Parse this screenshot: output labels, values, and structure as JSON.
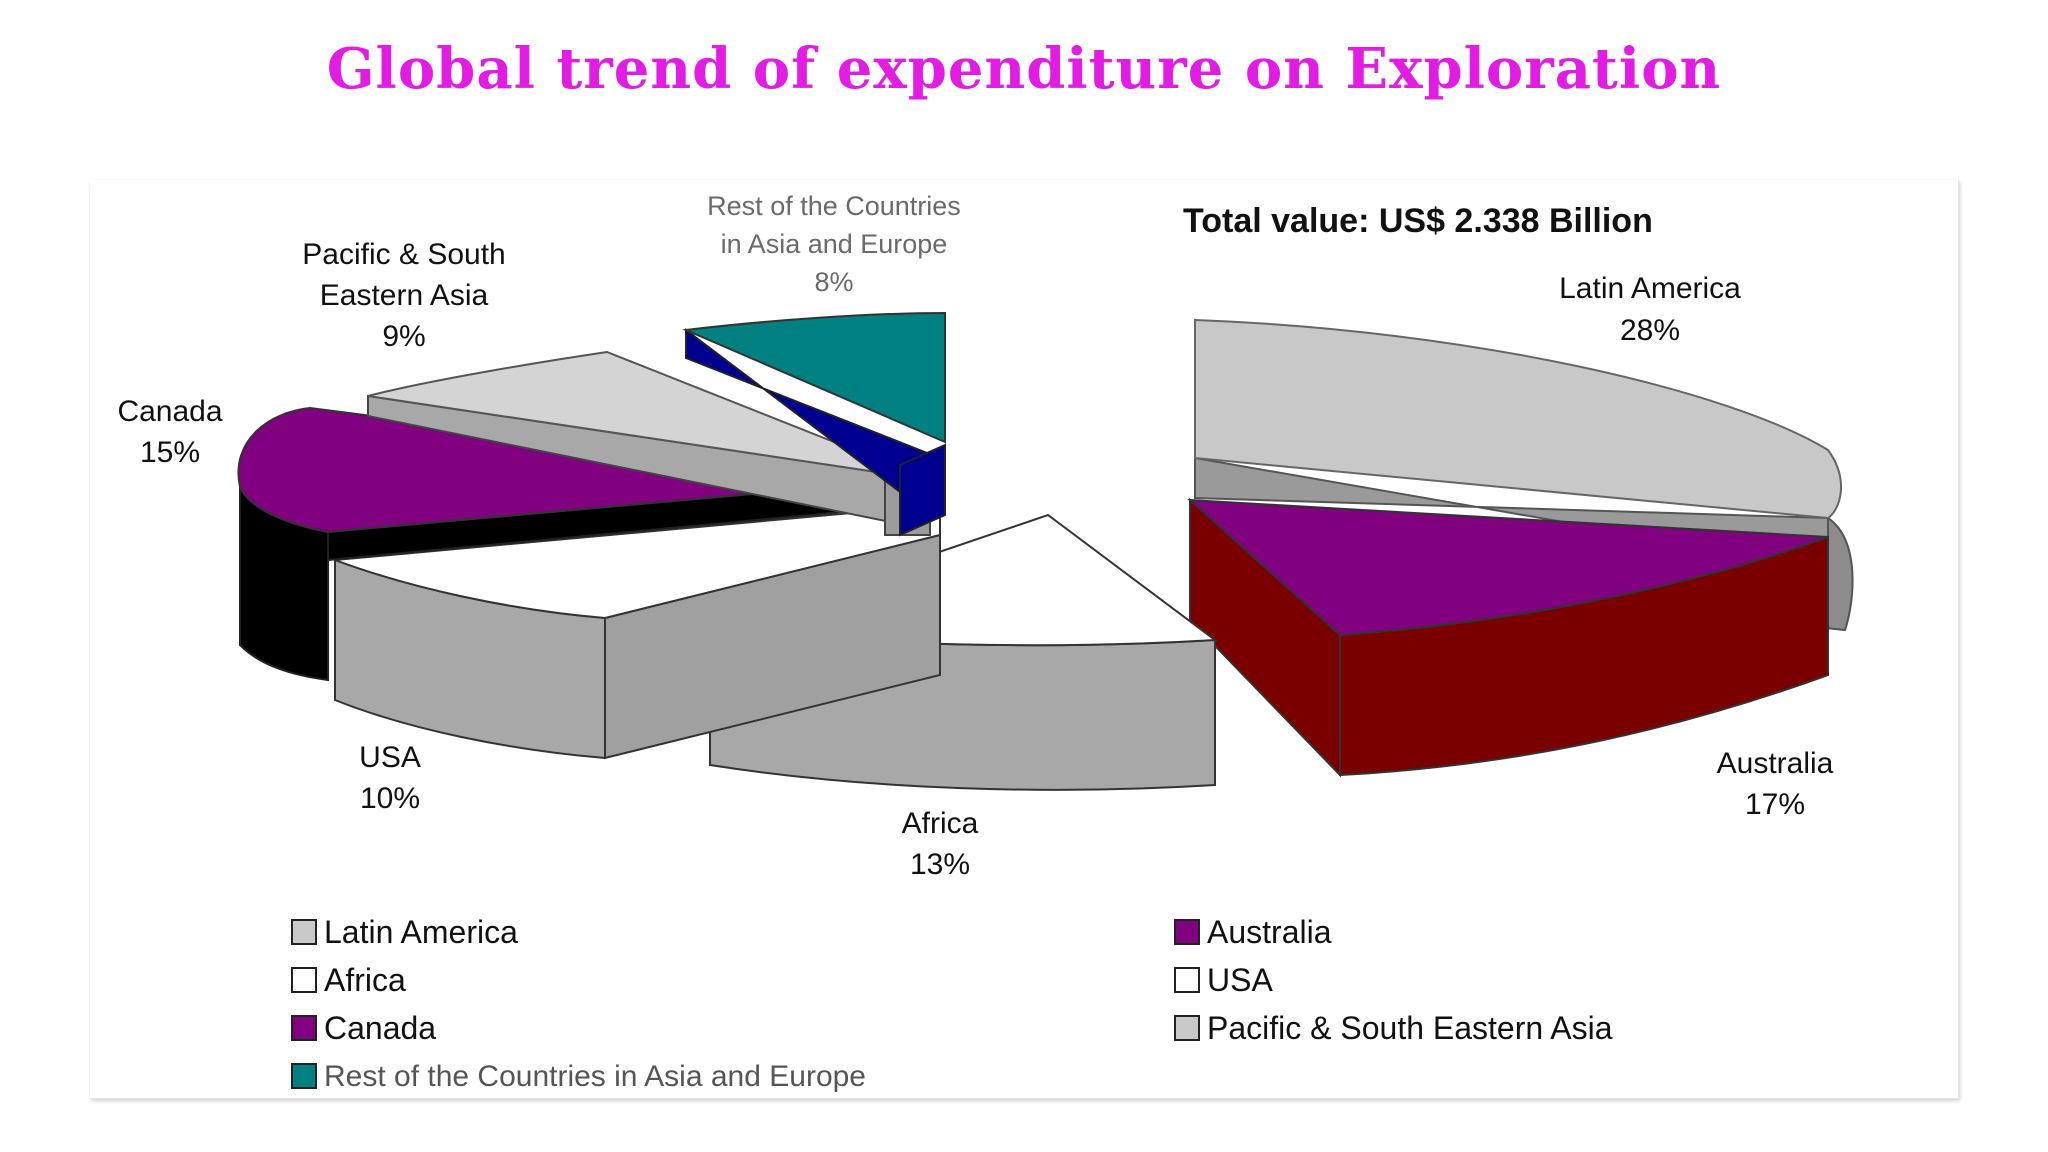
{
  "title": "Global trend of expenditure on Exploration",
  "colors": {
    "title": "#e21ce3"
  },
  "chart_data": {
    "type": "pie",
    "style": "3d-exploded",
    "title": "Global trend of expenditure on Exploration",
    "subtitle": "Total value: US$ 2.338 Billion",
    "slices": [
      {
        "label": "Latin America",
        "value": 28,
        "display": "28%",
        "color": "#c8c8c8"
      },
      {
        "label": "Australia",
        "value": 17,
        "display": "17%",
        "color": "#800080"
      },
      {
        "label": "Africa",
        "value": 13,
        "display": "13%",
        "color": "#ffffff"
      },
      {
        "label": "USA",
        "value": 10,
        "display": "10%",
        "color": "#ffffff"
      },
      {
        "label": "Canada",
        "value": 15,
        "display": "15%",
        "color": "#800080"
      },
      {
        "label": "Pacific & South Eastern Asia",
        "value": 9,
        "display": "9%",
        "color": "#c8c8c8"
      },
      {
        "label": "Rest of the Countries in Asia and Europe",
        "value": 8,
        "display": "8%",
        "color": "#008080"
      }
    ],
    "slice_labels": {
      "latin_america": [
        "Latin America",
        "28%"
      ],
      "australia": [
        "Australia",
        "17%"
      ],
      "africa": [
        "Africa",
        "13%"
      ],
      "usa": [
        "USA",
        "10%"
      ],
      "canada": [
        "Canada",
        "15%"
      ],
      "pacific": [
        "Pacific & South",
        "Eastern Asia",
        "9%"
      ],
      "rest": [
        "Rest of the Countries",
        "in Asia and Europe",
        "8%"
      ]
    },
    "legend": [
      {
        "label": "Latin America",
        "color": "#c8c8c8"
      },
      {
        "label": "Australia",
        "color": "#800080"
      },
      {
        "label": "Africa",
        "color": "#ffffff"
      },
      {
        "label": "USA",
        "color": "#ffffff"
      },
      {
        "label": "Canada",
        "color": "#800080"
      },
      {
        "label": "Pacific & South Eastern Asia",
        "color": "#c8c8c8"
      },
      {
        "label": "Rest of the Countries in Asia and Europe",
        "color": "#008080"
      }
    ],
    "legend_placement": "bottom"
  }
}
